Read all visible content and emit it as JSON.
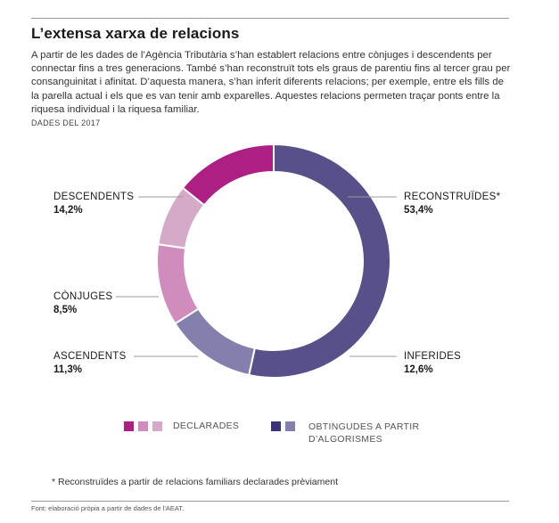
{
  "header": {
    "title": "L’extensa xarxa de relacions",
    "intro": "A partir de les dades de l’Agència Tributària s’han establert relacions entre cònjuges i descendents per connectar fins a tres generacions. També s’han reconstruït tots els graus de parentiu fins al tercer grau per consanguinitat i afinitat. D’aquesta manera, s’han inferit diferents relacions; per exemple, entre els fills de la parella actual i els que es van tenir amb exparelles. Aquestes relacions permeten traçar ponts entre la riquesa individual i la riquesa familiar.",
    "date": "DADES DEL 2017"
  },
  "chart_data": {
    "type": "pie",
    "donut": true,
    "series": [
      {
        "name": "RECONSTRUÏDES*",
        "value": 53.4,
        "label": "53,4%",
        "group": "obtingudes",
        "color": "#575089"
      },
      {
        "name": "INFERIDES",
        "value": 12.6,
        "label": "12,6%",
        "group": "obtingudes",
        "color": "#847fac"
      },
      {
        "name": "ASCENDENTS",
        "value": 11.3,
        "label": "11,3%",
        "group": "declarades",
        "color": "#cf8cbc"
      },
      {
        "name": "CÒNJUGES",
        "value": 8.5,
        "label": "8,5%",
        "group": "declarades",
        "color": "#d5aac9"
      },
      {
        "name": "DESCENDENTS",
        "value": 14.2,
        "label": "14,2%",
        "group": "declarades",
        "color": "#ad1f82"
      }
    ],
    "legend": [
      {
        "label": "DECLARADES",
        "colors": [
          "#ad1f82",
          "#cf8cbc",
          "#d5aac9"
        ]
      },
      {
        "label_line1": "OBTINGUDES A PARTIR",
        "label_line2": "D’ALGORISMES",
        "colors": [
          "#3b347a",
          "#847fac"
        ]
      }
    ]
  },
  "note": "* Reconstruïdes a partir de relacions familiars declarades prèviament",
  "footer": "Font: elaboració pròpia a partir de dades de l’AEAT."
}
